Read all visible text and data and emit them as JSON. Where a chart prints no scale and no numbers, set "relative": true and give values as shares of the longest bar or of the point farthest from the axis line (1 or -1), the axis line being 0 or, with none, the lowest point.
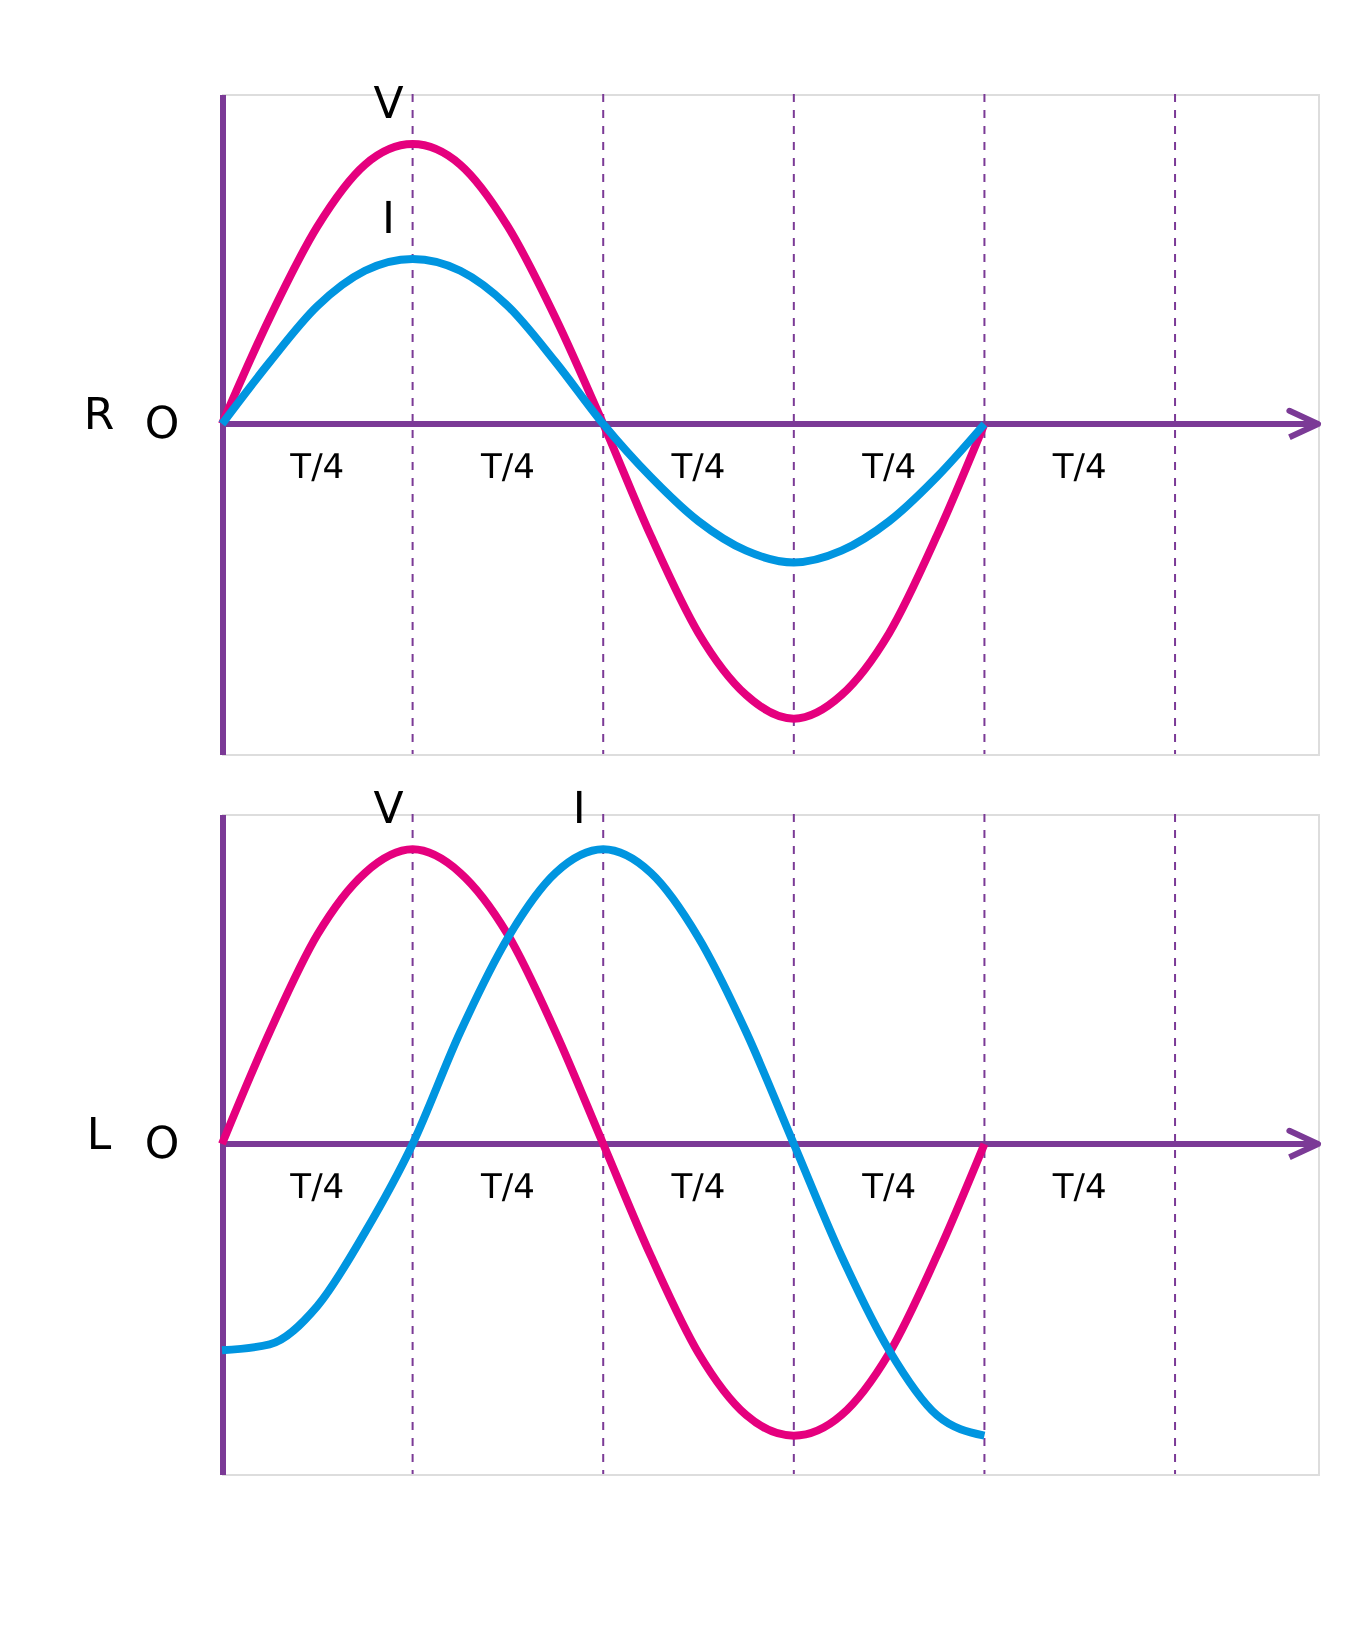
{
  "chart_data": [
    {
      "type": "line",
      "ylabel": "R",
      "relative": true,
      "grid": "x",
      "line_style": "solid",
      "categories": [
        null,
        null,
        null,
        null,
        null,
        null,
        null,
        null,
        null,
        null,
        null,
        null,
        null,
        null,
        null,
        null,
        null,
        null,
        null,
        null,
        null,
        null,
        null,
        null
      ],
      "ref_lines": [
        {
          "axis": "y",
          "value": 0,
          "color": "#7b3a96",
          "line_style": "solid"
        }
      ],
      "annotations": [
        "O",
        "T/4",
        "T/4",
        "T/4",
        "T/4",
        "T/4"
      ],
      "series": [
        {
          "name": "V",
          "color": "#e5007e",
          "values": [
            0,
            0.36,
            0.67,
            0.88,
            0.95,
            0.88,
            0.67,
            0.36,
            0,
            -0.38,
            -0.71,
            -0.92,
            -1,
            -0.92,
            -0.71,
            -0.38,
            0,
            null,
            null,
            null,
            null,
            null,
            null,
            null
          ]
        },
        {
          "name": "I",
          "color": "#0095e0",
          "values": [
            0,
            0.21,
            0.4,
            0.52,
            0.56,
            0.52,
            0.4,
            0.21,
            0,
            -0.18,
            -0.33,
            -0.43,
            -0.47,
            -0.43,
            -0.33,
            -0.18,
            0,
            null,
            null,
            null,
            null,
            null,
            null,
            null
          ]
        }
      ]
    },
    {
      "type": "line",
      "ylabel": "L",
      "relative": true,
      "grid": "x",
      "line_style": "solid",
      "categories": [
        null,
        null,
        null,
        null,
        null,
        null,
        null,
        null,
        null,
        null,
        null,
        null,
        null,
        null,
        null,
        null,
        null,
        null,
        null,
        null,
        null,
        null,
        null,
        null
      ],
      "ref_lines": [
        {
          "axis": "y",
          "value": 0,
          "color": "#7b3a96",
          "line_style": "solid"
        }
      ],
      "annotations": [
        "O",
        "T/4",
        "T/4",
        "T/4",
        "T/4",
        "T/4"
      ],
      "series": [
        {
          "name": "V",
          "color": "#e5007e",
          "values": [
            0,
            0.38,
            0.71,
            0.92,
            1,
            0.92,
            0.71,
            0.38,
            0,
            -0.38,
            -0.71,
            -0.92,
            -0.99,
            -0.92,
            -0.71,
            -0.38,
            0,
            null,
            null,
            null,
            null,
            null,
            null,
            null
          ]
        },
        {
          "name": "I",
          "color": "#0095e0",
          "values": [
            -0.7,
            -0.68,
            -0.55,
            -0.3,
            0,
            0.38,
            0.7,
            0.92,
            1,
            0.92,
            0.7,
            0.38,
            0,
            -0.38,
            -0.7,
            -0.92,
            -0.99,
            null,
            null,
            null,
            null,
            null,
            null,
            null
          ]
        }
      ]
    }
  ]
}
